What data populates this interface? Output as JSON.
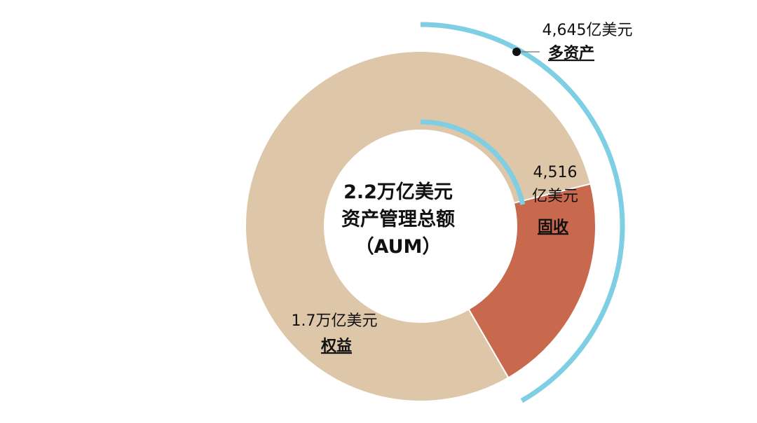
{
  "chart_data": {
    "type": "pie",
    "variant": "donut",
    "center_text": [
      "2.2万亿美元",
      "资产管理总额",
      "（AUM）"
    ],
    "segments": [
      {
        "name": "多资产",
        "value_label": "4,645亿美元",
        "value": 4645,
        "color": "#7ecfe3",
        "style": "overlay-arc"
      },
      {
        "name": "固收",
        "value_label_lines": [
          "4,516",
          "亿美元"
        ],
        "value": 4516,
        "color": "#c8694d"
      },
      {
        "name": "权益",
        "value_label": "1.7万亿美元",
        "value": 17000,
        "color": "#ddc7a8"
      }
    ],
    "total_value": 22000
  }
}
